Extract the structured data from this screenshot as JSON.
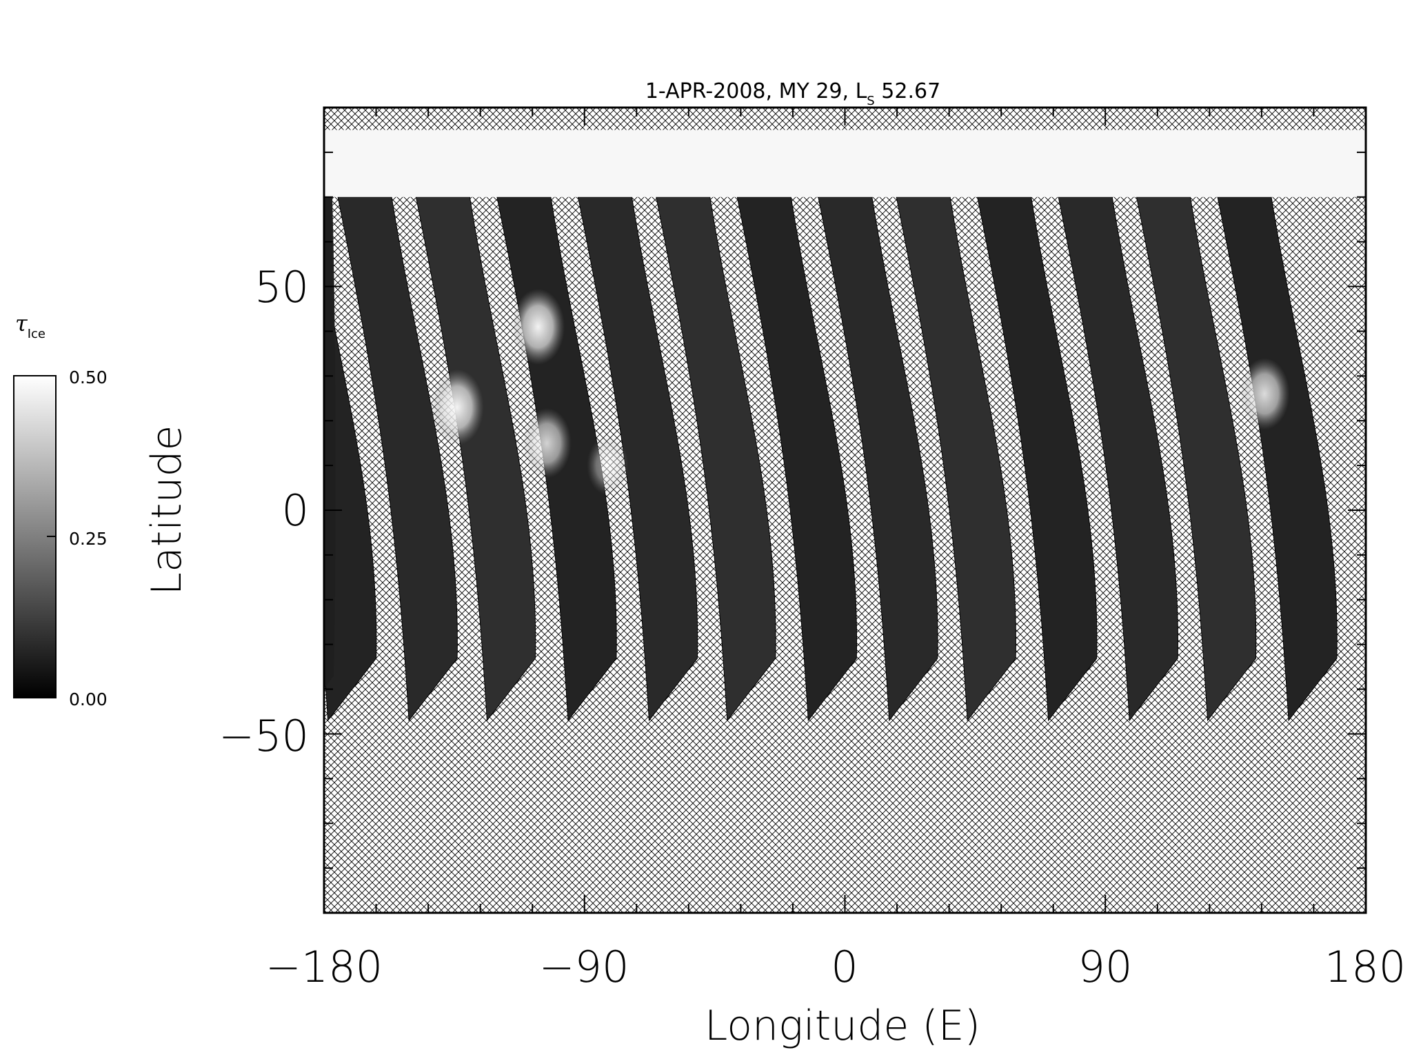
{
  "chart_data": {
    "type": "heatmap",
    "title_parts": {
      "prefix": "1-APR-2008, MY 29,  ",
      "ls_main": "L",
      "ls_sub": "S",
      "ls_value": " 52.67"
    },
    "xlabel": "Longitude (E)",
    "ylabel": "Latitude",
    "xlim": [
      -180,
      180
    ],
    "ylim": [
      -90,
      90
    ],
    "x_ticks": [
      -180,
      -90,
      0,
      90,
      180
    ],
    "x_tick_labels": [
      "−180",
      "−90",
      "0",
      "90",
      "180"
    ],
    "y_ticks": [
      -50,
      0,
      50
    ],
    "y_tick_labels": [
      "−50",
      "0",
      "50"
    ],
    "x_minor_step": 18,
    "y_minor_step": 10,
    "no_data_pattern": "cross-hatch",
    "polar_cap": {
      "lat_min": 70,
      "lat_max": 85,
      "value": "saturated (white)"
    },
    "swaths": {
      "count": 13,
      "spacing_deg_lon": 27.7,
      "north_lat": 70,
      "south_lat": -47,
      "lower_edge_lons": [
        -162,
        -134,
        -107,
        -79,
        -51,
        -24,
        4,
        32,
        59,
        87,
        115,
        142,
        170
      ],
      "colormap_values_typical": 0.08
    },
    "bright_features": [
      {
        "lon": -134,
        "lat": 23,
        "value": 0.45
      },
      {
        "lon": -106,
        "lat": 41,
        "value": 0.45
      },
      {
        "lon": -103,
        "lat": 15,
        "value": 0.38
      },
      {
        "lon": 145,
        "lat": 26,
        "value": 0.4
      },
      {
        "lon": -82,
        "lat": 10,
        "value": 0.25
      }
    ],
    "colorbar": {
      "title_symbol": "τ",
      "title_sub": "Ice",
      "min": 0.0,
      "max": 0.5,
      "ticks": [
        0.0,
        0.25,
        0.5
      ],
      "tick_labels": [
        "0.00",
        "0.25",
        "0.50"
      ],
      "colormap": "grayscale"
    }
  }
}
